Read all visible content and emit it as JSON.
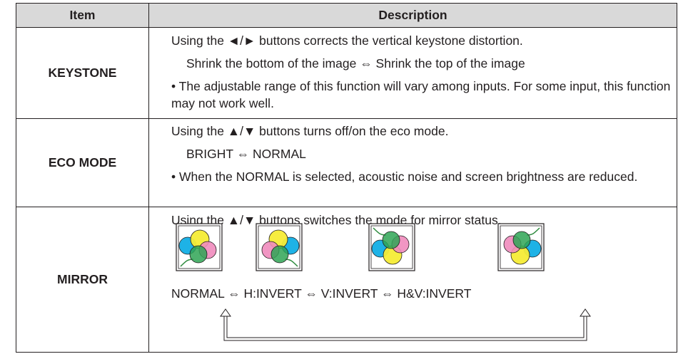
{
  "table": {
    "header": [
      "Item",
      "Description"
    ],
    "rows": [
      {
        "item": "KEYSTONE",
        "lines": [
          "Using the ◄/► buttons corrects the vertical keystone distortion.",
          "Shrink the bottom of the image ⇔ Shrink the top of the image",
          "• The adjustable range of this function will vary among inputs. For some input, this function may not work well."
        ]
      },
      {
        "item": "ECO MODE",
        "lines": [
          "Using the ▲/▼ buttons turns off/on the eco mode.",
          "BRIGHT ⇔ NORMAL",
          "• When the NORMAL is selected, acoustic noise and screen brightness are reduced."
        ]
      },
      {
        "item": "MIRROR",
        "lines": [
          "Using the ▲/▼ buttons switches the mode for mirror status.",
          "NORMAL ⇔ H:INVERT ⇔ V:INVERT ⇔ H&V:INVERT"
        ]
      }
    ]
  }
}
